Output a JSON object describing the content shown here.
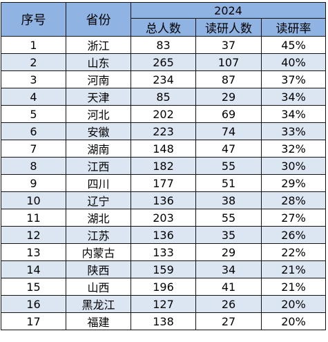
{
  "headers": {
    "index": "序号",
    "province": "省份",
    "year": "2024",
    "total": "总人数",
    "grad": "读研人数",
    "rate": "读研率"
  },
  "rows": [
    {
      "index": "1",
      "province": "浙江",
      "total": "83",
      "grad": "37",
      "rate": "45%"
    },
    {
      "index": "2",
      "province": "山东",
      "total": "265",
      "grad": "107",
      "rate": "40%"
    },
    {
      "index": "3",
      "province": "河南",
      "total": "234",
      "grad": "87",
      "rate": "37%"
    },
    {
      "index": "4",
      "province": "天津",
      "total": "85",
      "grad": "29",
      "rate": "34%"
    },
    {
      "index": "5",
      "province": "河北",
      "total": "202",
      "grad": "69",
      "rate": "34%"
    },
    {
      "index": "6",
      "province": "安徽",
      "total": "223",
      "grad": "74",
      "rate": "33%"
    },
    {
      "index": "7",
      "province": "湖南",
      "total": "148",
      "grad": "47",
      "rate": "32%"
    },
    {
      "index": "8",
      "province": "江西",
      "total": "182",
      "grad": "55",
      "rate": "30%"
    },
    {
      "index": "9",
      "province": "四川",
      "total": "177",
      "grad": "51",
      "rate": "29%"
    },
    {
      "index": "10",
      "province": "辽宁",
      "total": "136",
      "grad": "38",
      "rate": "28%"
    },
    {
      "index": "11",
      "province": "湖北",
      "total": "203",
      "grad": "55",
      "rate": "27%"
    },
    {
      "index": "12",
      "province": "江苏",
      "total": "136",
      "grad": "35",
      "rate": "26%"
    },
    {
      "index": "13",
      "province": "内蒙古",
      "total": "133",
      "grad": "29",
      "rate": "22%"
    },
    {
      "index": "14",
      "province": "陕西",
      "total": "159",
      "grad": "34",
      "rate": "21%"
    },
    {
      "index": "15",
      "province": "山西",
      "total": "196",
      "grad": "41",
      "rate": "21%"
    },
    {
      "index": "16",
      "province": "黑龙江",
      "total": "127",
      "grad": "26",
      "rate": "20%"
    },
    {
      "index": "17",
      "province": "福建",
      "total": "138",
      "grad": "27",
      "rate": "20%"
    }
  ],
  "colors": {
    "header_bg": "#8fb4e3",
    "stripe_bg": "#dce6f3",
    "row_bg": "#ffffff",
    "border": "#111111"
  }
}
